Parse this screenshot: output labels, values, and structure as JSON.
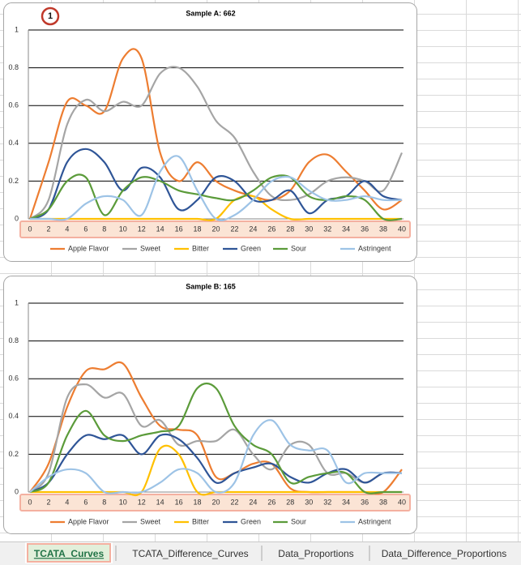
{
  "badge": "1",
  "chart_data": [
    {
      "type": "line",
      "title": "Sample A: 662",
      "x": [
        0,
        2,
        4,
        6,
        8,
        10,
        12,
        14,
        16,
        18,
        20,
        22,
        24,
        26,
        28,
        30,
        32,
        34,
        36,
        38,
        40
      ],
      "xlim": [
        0,
        40
      ],
      "xticks": [
        0,
        2,
        4,
        6,
        8,
        10,
        12,
        14,
        16,
        18,
        20,
        22,
        24,
        26,
        28,
        30,
        32,
        34,
        36,
        38,
        40
      ],
      "ylim": [
        0,
        1
      ],
      "yticks": [
        0,
        0.2,
        0.4,
        0.6,
        0.8,
        1
      ],
      "grid": true,
      "legend": "bottom",
      "smooth": true,
      "series": [
        {
          "name": "Apple Flavor",
          "color": "#ed7d31",
          "values": [
            0,
            0.3,
            0.62,
            0.6,
            0.57,
            0.85,
            0.85,
            0.35,
            0.2,
            0.3,
            0.2,
            0.15,
            0.12,
            0.1,
            0.15,
            0.3,
            0.34,
            0.25,
            0.15,
            0.05,
            0.1
          ]
        },
        {
          "name": "Sweet",
          "color": "#a5a5a5",
          "values": [
            0,
            0.1,
            0.5,
            0.63,
            0.57,
            0.62,
            0.6,
            0.77,
            0.8,
            0.7,
            0.52,
            0.43,
            0.25,
            0.12,
            0.1,
            0.13,
            0.2,
            0.22,
            0.2,
            0.15,
            0.35
          ]
        },
        {
          "name": "Bitter",
          "color": "#ffc000",
          "values": [
            0,
            0,
            0,
            0,
            0,
            0,
            0,
            0,
            0,
            0,
            0,
            0.1,
            0.12,
            0.05,
            0,
            0,
            0,
            0,
            0,
            0,
            0
          ]
        },
        {
          "name": "Green",
          "color": "#2f5597",
          "values": [
            0,
            0.05,
            0.3,
            0.37,
            0.3,
            0.15,
            0.27,
            0.22,
            0.05,
            0.1,
            0.22,
            0.2,
            0.1,
            0.1,
            0.15,
            0.03,
            0.1,
            0.12,
            0.2,
            0.12,
            0.1
          ]
        },
        {
          "name": "Sour",
          "color": "#5b9b3a",
          "values": [
            0,
            0.05,
            0.2,
            0.22,
            0.02,
            0.15,
            0.22,
            0.2,
            0.15,
            0.13,
            0.11,
            0.1,
            0.15,
            0.22,
            0.22,
            0.12,
            0.1,
            0.12,
            0.1,
            0,
            0
          ]
        },
        {
          "name": "Astringent",
          "color": "#9dc3e6",
          "values": [
            0,
            0,
            0,
            0.08,
            0.12,
            0.1,
            0.02,
            0.25,
            0.33,
            0.15,
            0,
            0.02,
            0.1,
            0.2,
            0.22,
            0.15,
            0.1,
            0.1,
            0.12,
            0.1,
            0.1
          ]
        }
      ]
    },
    {
      "type": "line",
      "title": "Sample B: 165",
      "x": [
        0,
        2,
        4,
        6,
        8,
        10,
        12,
        14,
        16,
        18,
        20,
        22,
        24,
        26,
        28,
        30,
        32,
        34,
        36,
        38,
        40
      ],
      "xlim": [
        0,
        40
      ],
      "xticks": [
        0,
        2,
        4,
        6,
        8,
        10,
        12,
        14,
        16,
        18,
        20,
        22,
        24,
        26,
        28,
        30,
        32,
        34,
        36,
        38,
        40
      ],
      "ylim": [
        0,
        1
      ],
      "yticks": [
        0,
        0.2,
        0.4,
        0.6,
        0.8,
        1
      ],
      "grid": true,
      "legend": "bottom",
      "smooth": true,
      "series": [
        {
          "name": "Apple Flavor",
          "color": "#ed7d31",
          "values": [
            0,
            0.15,
            0.45,
            0.64,
            0.65,
            0.68,
            0.5,
            0.35,
            0.33,
            0.3,
            0.08,
            0.1,
            0.15,
            0.15,
            0.02,
            0,
            0,
            0,
            0,
            0,
            0.12
          ]
        },
        {
          "name": "Sweet",
          "color": "#a5a5a5",
          "values": [
            0,
            0.1,
            0.5,
            0.57,
            0.5,
            0.52,
            0.35,
            0.38,
            0.25,
            0.27,
            0.27,
            0.33,
            0.2,
            0.12,
            0.25,
            0.25,
            0.1,
            0.1,
            0.05,
            0.1,
            0.1
          ]
        },
        {
          "name": "Bitter",
          "color": "#ffc000",
          "values": [
            0,
            0,
            0,
            0,
            0,
            0,
            0,
            0.23,
            0.2,
            0,
            0,
            0,
            0,
            0,
            0,
            0,
            0,
            0,
            0,
            0,
            0
          ]
        },
        {
          "name": "Green",
          "color": "#2f5597",
          "values": [
            0,
            0.05,
            0.2,
            0.3,
            0.28,
            0.3,
            0.2,
            0.3,
            0.28,
            0.18,
            0.05,
            0.1,
            0.13,
            0.15,
            0.08,
            0.05,
            0.1,
            0.12,
            0.05,
            0.1,
            0.1
          ]
        },
        {
          "name": "Sour",
          "color": "#5b9b3a",
          "values": [
            0,
            0.05,
            0.3,
            0.43,
            0.3,
            0.27,
            0.3,
            0.32,
            0.35,
            0.55,
            0.55,
            0.35,
            0.25,
            0.2,
            0.05,
            0.08,
            0.1,
            0.1,
            0,
            0,
            0
          ]
        },
        {
          "name": "Astringent",
          "color": "#9dc3e6",
          "values": [
            0,
            0.08,
            0.12,
            0.1,
            0,
            0,
            0,
            0.05,
            0.12,
            0.1,
            0,
            0.05,
            0.3,
            0.38,
            0.25,
            0.22,
            0.22,
            0.05,
            0.1,
            0.1,
            0.1
          ]
        }
      ]
    }
  ],
  "sheet_tabs": [
    "TCATA_Curves",
    "TCATA_Difference_Curves",
    "Data_Proportions",
    "Data_Difference_Proportions"
  ]
}
